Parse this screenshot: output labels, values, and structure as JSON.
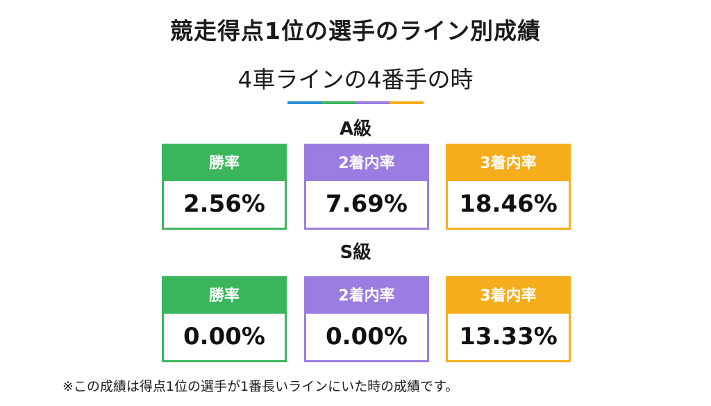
{
  "title": "競走得点1位の選手のライン別成績",
  "subtitle": "4車ラインの4番手の時",
  "colors": {
    "green": "#3bb55c",
    "purple": "#9b7ce0",
    "orange": "#f6ad1c",
    "blue": "#2a8fd6"
  },
  "grades": [
    {
      "label": "A級",
      "cards": [
        {
          "label": "勝率",
          "value": "2.56%",
          "color": "green"
        },
        {
          "label": "2着内率",
          "value": "7.69%",
          "color": "purple"
        },
        {
          "label": "3着内率",
          "value": "18.46%",
          "color": "orange"
        }
      ]
    },
    {
      "label": "S級",
      "cards": [
        {
          "label": "勝率",
          "value": "0.00%",
          "color": "green"
        },
        {
          "label": "2着内率",
          "value": "0.00%",
          "color": "purple"
        },
        {
          "label": "3着内率",
          "value": "13.33%",
          "color": "orange"
        }
      ]
    }
  ],
  "footnote": "※この成績は得点1位の選手が1番長いラインにいた時の成績です。"
}
